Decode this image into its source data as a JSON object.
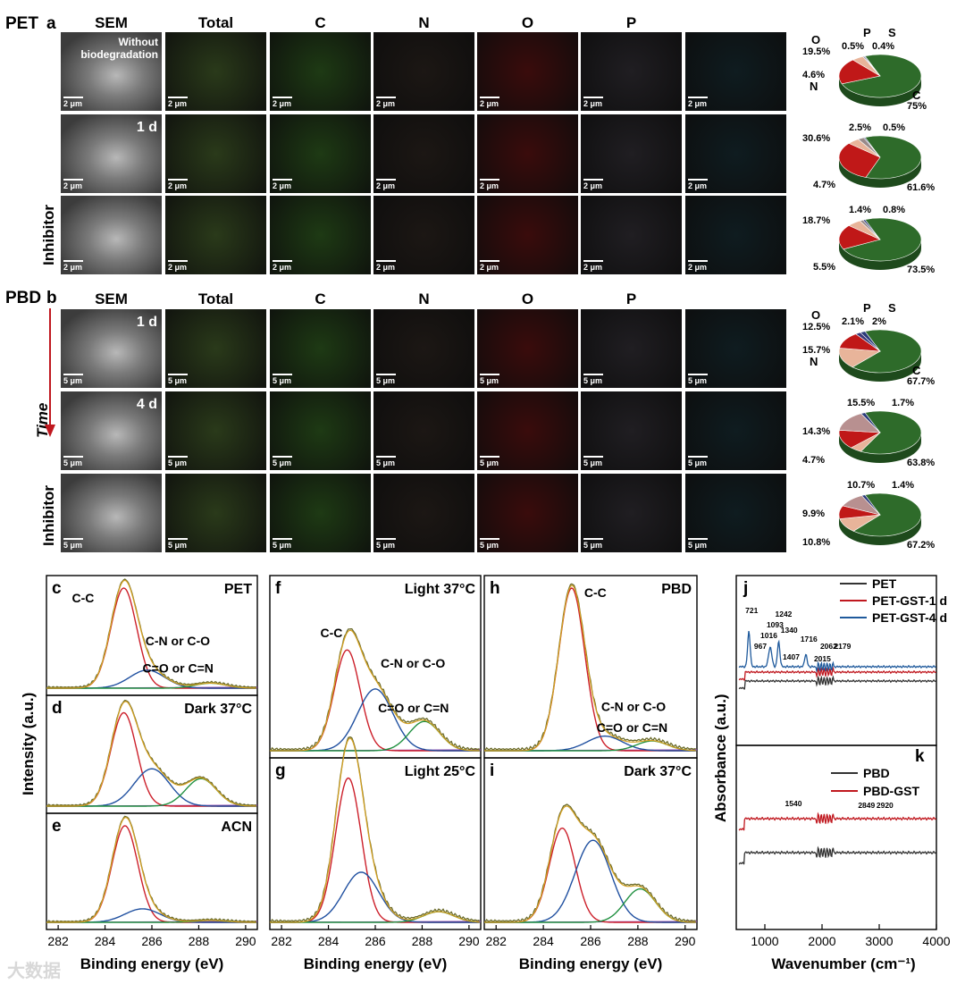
{
  "panel_labels": {
    "a": "a",
    "b": "b",
    "c": "c",
    "d": "d",
    "e": "e",
    "f": "f",
    "g": "g",
    "h": "h",
    "i": "i",
    "j": "j",
    "k": "k"
  },
  "material_labels": {
    "pet": "PET",
    "pbd": "PBD"
  },
  "eds_columns": [
    "SEM",
    "Total",
    "C",
    "N",
    "O",
    "P"
  ],
  "pet_rows": [
    {
      "overlay": "Without biodegradation",
      "side": "",
      "scale": "2 μm"
    },
    {
      "overlay": "1 d",
      "side": "",
      "scale": "2 μm"
    },
    {
      "overlay": "",
      "side": "Inhibitor",
      "scale": "2 μm"
    }
  ],
  "pbd_rows": [
    {
      "overlay": "1 d",
      "side": "",
      "scale": "5 μm"
    },
    {
      "overlay": "4 d",
      "side": "",
      "scale": "5 μm"
    },
    {
      "overlay": "",
      "side": "Inhibitor",
      "scale": "5 μm"
    }
  ],
  "time_label": "Time",
  "tile_colors": {
    "sem": "#6a6a6a",
    "total": "#2a3a1a",
    "c": "#1e3a14",
    "n": "#1c1714",
    "o": "#3a0c0c",
    "p": "#201e22",
    "s": "#0f1c20"
  },
  "chart_data": [
    {
      "type": "pie",
      "panel": "a-1",
      "labels": [
        "C",
        "O",
        "N",
        "P",
        "S"
      ],
      "values": [
        75,
        19.5,
        4.6,
        0.5,
        0.4
      ],
      "value_labels": [
        "75%",
        "19.5%",
        "4.6%",
        "0.5%",
        "0.4%"
      ],
      "colors": [
        "#2e6b2a",
        "#c01818",
        "#e8b49a",
        "#4a4a6a",
        "#2a3a7a"
      ]
    },
    {
      "type": "pie",
      "panel": "a-2",
      "labels": [
        "C",
        "O",
        "N",
        "P",
        "S"
      ],
      "values": [
        61.6,
        30.6,
        4.7,
        2.5,
        0.5
      ],
      "value_labels": [
        "61.6%",
        "30.6%",
        "4.7%",
        "2.5%",
        "0.5%"
      ],
      "colors": [
        "#2e6b2a",
        "#c01818",
        "#e8b49a",
        "#9a8a8a",
        "#2a3a7a"
      ]
    },
    {
      "type": "pie",
      "panel": "a-3",
      "labels": [
        "C",
        "O",
        "N",
        "P",
        "S"
      ],
      "values": [
        73.5,
        18.7,
        5.5,
        1.4,
        0.8
      ],
      "value_labels": [
        "73.5%",
        "18.7%",
        "5.5%",
        "1.4%",
        "0.8%"
      ],
      "colors": [
        "#2e6b2a",
        "#c01818",
        "#e8b49a",
        "#9a8a8a",
        "#2a3a7a"
      ]
    },
    {
      "type": "pie",
      "panel": "b-1",
      "labels": [
        "C",
        "N",
        "O",
        "P",
        "S"
      ],
      "values": [
        67.7,
        15.7,
        12.5,
        2.1,
        2
      ],
      "value_labels": [
        "67.7%",
        "15.7%",
        "12.5%",
        "2.1%",
        "2%"
      ],
      "colors": [
        "#2e6b2a",
        "#e8b49a",
        "#c01818",
        "#3a3a7a",
        "#2a3a7a"
      ]
    },
    {
      "type": "pie",
      "panel": "b-2",
      "labels": [
        "C",
        "N",
        "O",
        "P",
        "S"
      ],
      "values": [
        63.8,
        4.7,
        14.3,
        15.5,
        1.7
      ],
      "value_labels": [
        "63.8%",
        "4.7%",
        "14.3%",
        "15.5%",
        "1.7%"
      ],
      "colors": [
        "#2e6b2a",
        "#e8b49a",
        "#c01818",
        "#b89090",
        "#2a3a7a"
      ]
    },
    {
      "type": "pie",
      "panel": "b-3",
      "labels": [
        "C",
        "N",
        "O",
        "P",
        "S"
      ],
      "values": [
        67.2,
        10.8,
        9.9,
        10.7,
        1.4
      ],
      "value_labels": [
        "67.2%",
        "10.8%",
        "9.9%",
        "10.7%",
        "1.4%"
      ],
      "colors": [
        "#2e6b2a",
        "#e8b49a",
        "#c01818",
        "#b89090",
        "#2a3a7a"
      ]
    },
    {
      "type": "line",
      "panel": "c",
      "title": "PET",
      "xlim": [
        281.5,
        290.5
      ],
      "peaks": [
        {
          "name": "C-C",
          "center": 284.8,
          "height": 1.0
        },
        {
          "name": "C-N or C-O",
          "center": 285.8,
          "height": 0.18
        },
        {
          "name": "C=O or C=N",
          "center": 288.5,
          "height": 0.05
        }
      ]
    },
    {
      "type": "line",
      "panel": "d",
      "title": "Dark 37°C",
      "xlim": [
        281.5,
        290.5
      ],
      "peaks": [
        {
          "center": 284.8,
          "height": 0.95
        },
        {
          "center": 286.0,
          "height": 0.38
        },
        {
          "center": 288.1,
          "height": 0.28
        }
      ]
    },
    {
      "type": "line",
      "panel": "e",
      "title": "ACN",
      "xlim": [
        281.5,
        290.5
      ],
      "peaks": [
        {
          "center": 284.85,
          "height": 1.0
        },
        {
          "center": 285.6,
          "height": 0.14
        },
        {
          "center": 288.5,
          "height": 0.02
        }
      ]
    },
    {
      "type": "line",
      "panel": "f",
      "title": "Light 37°C",
      "xlim": [
        281.5,
        290.5
      ],
      "peaks": [
        {
          "name": "C-C",
          "center": 284.8,
          "height": 0.62
        },
        {
          "name": "C-N or C-O",
          "center": 286.0,
          "height": 0.38
        },
        {
          "name": "C=O or C=N",
          "center": 288.1,
          "height": 0.18
        }
      ]
    },
    {
      "type": "line",
      "panel": "g",
      "title": "Light 25°C",
      "xlim": [
        281.5,
        290.5
      ],
      "peaks": [
        {
          "center": 284.85,
          "height": 0.95
        },
        {
          "center": 285.4,
          "height": 0.33
        },
        {
          "center": 288.7,
          "height": 0.07
        }
      ]
    },
    {
      "type": "line",
      "panel": "h",
      "title": "PBD",
      "xlim": [
        281.5,
        290.5
      ],
      "peaks": [
        {
          "name": "C-C",
          "center": 285.2,
          "height": 1.0
        },
        {
          "name": "C-N or C-O",
          "center": 286.6,
          "height": 0.09
        },
        {
          "name": "C=O or C=N",
          "center": 288.6,
          "height": 0.06
        }
      ]
    },
    {
      "type": "line",
      "panel": "i",
      "title": "Dark 37°C",
      "xlim": [
        281.5,
        290.5
      ],
      "peaks": [
        {
          "center": 284.8,
          "height": 0.62
        },
        {
          "center": 286.1,
          "height": 0.54
        },
        {
          "center": 288.1,
          "height": 0.22
        }
      ]
    },
    {
      "type": "line",
      "panel": "j",
      "series": [
        {
          "name": "PET",
          "color": "#333333"
        },
        {
          "name": "PET-GST-1 d",
          "color": "#c0181f"
        },
        {
          "name": "PET-GST-4 d",
          "color": "#1f5a9c"
        }
      ],
      "annotations": [
        "721",
        "1016",
        "967",
        "1093",
        "1242",
        "1340",
        "1407",
        "1716",
        "2015",
        "2062",
        "2179"
      ]
    },
    {
      "type": "line",
      "panel": "k",
      "series": [
        {
          "name": "PBD",
          "color": "#333333"
        },
        {
          "name": "PBD-GST",
          "color": "#c0181f"
        }
      ],
      "annotations": [
        "1540",
        "2849",
        "2920"
      ]
    }
  ],
  "xps": {
    "ylabel": "Intensity (a.u.)",
    "xlabel": "Binding energy (eV)",
    "ticks": [
      "282",
      "284",
      "286",
      "288",
      "290"
    ],
    "colors": {
      "raw": "#6b6b2a",
      "envelope": "#d4a020",
      "cc": "#cc1f2a",
      "cn": "#2050a0",
      "co": "#209040",
      "bg": "#9040b0"
    },
    "c": {
      "title": "PET",
      "peak_labels": [
        "C-C",
        "C-N or C-O",
        "C=O or C=N"
      ]
    },
    "d": {
      "title": "Dark 37°C"
    },
    "e": {
      "title": "ACN"
    },
    "f": {
      "title": "Light 37°C",
      "peak_labels": [
        "C-C",
        "C-N or C-O",
        "C=O or C=N"
      ]
    },
    "g": {
      "title": "Light 25°C"
    },
    "h": {
      "title": "PBD",
      "peak_labels": [
        "C-C",
        "C-N or C-O",
        "C=O or C=N"
      ]
    },
    "i": {
      "title": "Dark 37°C"
    }
  },
  "ftir": {
    "ylabel": "Absorbance (a.u.)",
    "xlabel": "Wavenumber (cm⁻¹)",
    "ticks": [
      "1000",
      "2000",
      "3000",
      "4000"
    ],
    "j_legend": [
      "PET",
      "PET-GST-1 d",
      "PET-GST-4 d"
    ],
    "k_legend": [
      "PBD",
      "PBD-GST"
    ],
    "j_ann": [
      "721",
      "1016",
      "967",
      "1093",
      "1242",
      "1340",
      "1407",
      "1716",
      "2015",
      "2062",
      "2179"
    ],
    "k_ann": [
      "1540",
      "2849",
      "2920"
    ]
  },
  "watermark": "大数据"
}
